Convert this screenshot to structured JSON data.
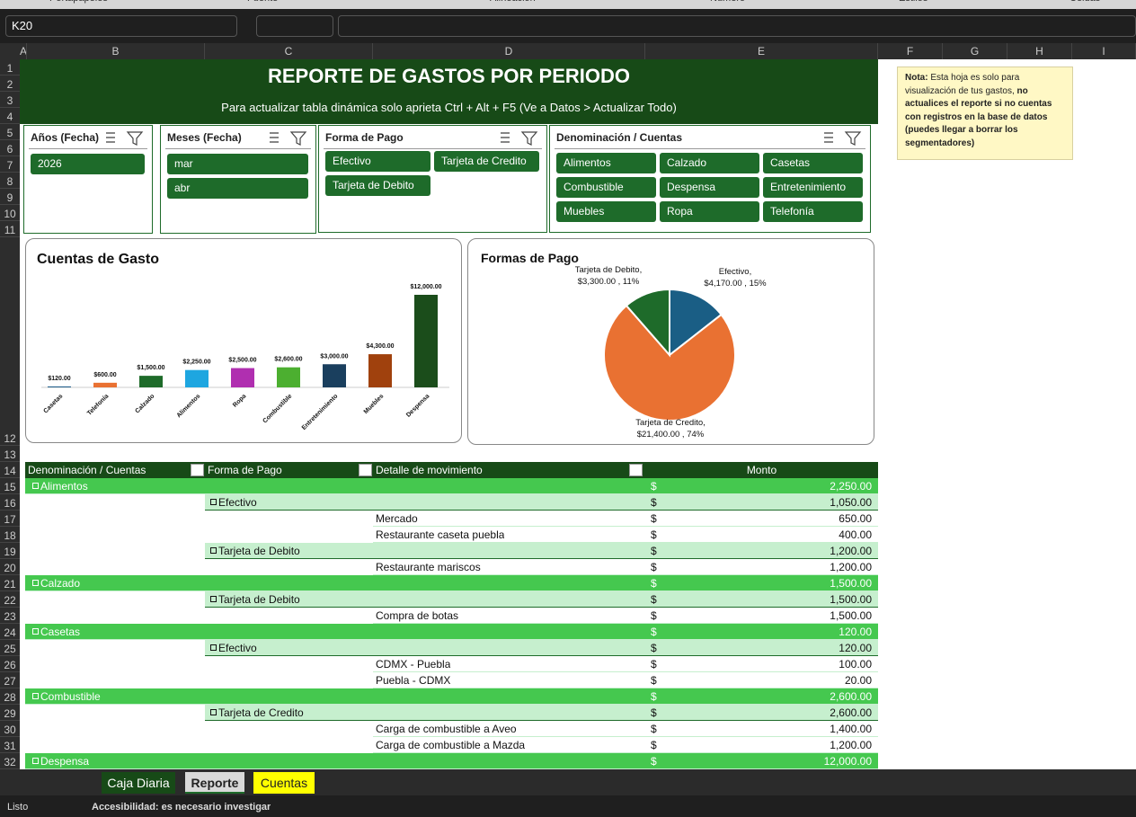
{
  "ribbon_groups": [
    "Portapapeles",
    "Fuente",
    "Alineación",
    "Número",
    "Estilos",
    "Celdas"
  ],
  "name_box": "K20",
  "columns": [
    "A",
    "B",
    "C",
    "D",
    "E",
    "F",
    "G",
    "H",
    "I"
  ],
  "rows": [
    1,
    2,
    3,
    4,
    5,
    6,
    7,
    8,
    9,
    10,
    11,
    12,
    13,
    14,
    15,
    16,
    17,
    18,
    19,
    20,
    21,
    22,
    23,
    24,
    25,
    26,
    27,
    28,
    29,
    30,
    31,
    32
  ],
  "report": {
    "title": "REPORTE DE GASTOS POR PERIODO",
    "subtitle": "Para actualizar tabla dinámica solo aprieta Ctrl + Alt + F5 (Ve a Datos > Actualizar Todo)"
  },
  "slicers": [
    {
      "title": "Años (Fecha)",
      "items": [
        "2026"
      ]
    },
    {
      "title": "Meses (Fecha)",
      "items": [
        "mar",
        "abr"
      ]
    },
    {
      "title": "Forma de Pago",
      "items": [
        "Efectivo",
        "Tarjeta de Credito",
        "Tarjeta de Debito"
      ]
    },
    {
      "title": "Denominación / Cuentas",
      "items": [
        "Alimentos",
        "Calzado",
        "Casetas",
        "Combustible",
        "Despensa",
        "Entretenimiento",
        "Muebles",
        "Ropa",
        "Telefonía"
      ]
    }
  ],
  "note": {
    "label": "Nota:",
    "text": "Esta hoja es solo para visualización de tus gastos,",
    "bold_text": "no actualices el reporte si no cuentas con registros en la base de datos (puedes llegar a borrar los segmentadores)"
  },
  "chart_data": [
    {
      "type": "bar",
      "title": "Cuentas de Gasto",
      "categories": [
        "Casetas",
        "Telefonía",
        "Calzado",
        "Alimentos",
        "Ropa",
        "Combustible",
        "Entretenimiento",
        "Muebles",
        "Despensa"
      ],
      "values": [
        120,
        600,
        1500,
        2250,
        2500,
        2600,
        3000,
        4300,
        12000
      ],
      "value_labels": [
        "$120.00",
        "$600.00",
        "$1,500.00",
        "$2,250.00",
        "$2,500.00",
        "$2,600.00",
        "$3,000.00",
        "$4,300.00",
        "$12,000.00"
      ],
      "colors": [
        "#1f5f8b",
        "#e97132",
        "#1e6b2a",
        "#1ea6e0",
        "#b02fb0",
        "#4caf30",
        "#1a3f5e",
        "#a0410d",
        "#1b4d1b"
      ]
    },
    {
      "type": "pie",
      "title": "Formas de Pago",
      "categories": [
        "Efectivo,",
        "Tarjeta de Credito,",
        "Tarjeta de Debito,"
      ],
      "values": [
        4170,
        21400,
        3300
      ],
      "value_labels": [
        "$4,170.00 , 15%",
        "$21,400.00 , 74%",
        "$3,300.00 , 11%"
      ],
      "colors": [
        "#1a5e85",
        "#e97132",
        "#1e6b2a"
      ]
    }
  ],
  "table": {
    "headers": [
      "Denominación / Cuentas",
      "Forma de Pago",
      "Detalle de movimiento",
      "Monto"
    ],
    "currency_symbol": "$",
    "groups": [
      {
        "label": "Alimentos",
        "amount": "2,250.00",
        "payments": [
          {
            "label": "Efectivo",
            "amount": "1,050.00",
            "items": [
              {
                "label": "Mercado",
                "amount": "650.00"
              },
              {
                "label": "Restaurante caseta puebla",
                "amount": "400.00"
              }
            ]
          },
          {
            "label": "Tarjeta de Debito",
            "amount": "1,200.00",
            "items": [
              {
                "label": "Restaurante mariscos",
                "amount": "1,200.00"
              }
            ]
          }
        ]
      },
      {
        "label": "Calzado",
        "amount": "1,500.00",
        "payments": [
          {
            "label": "Tarjeta de Debito",
            "amount": "1,500.00",
            "items": [
              {
                "label": "Compra de botas",
                "amount": "1,500.00"
              }
            ]
          }
        ]
      },
      {
        "label": "Casetas",
        "amount": "120.00",
        "payments": [
          {
            "label": "Efectivo",
            "amount": "120.00",
            "items": [
              {
                "label": "CDMX - Puebla",
                "amount": "100.00"
              },
              {
                "label": "Puebla - CDMX",
                "amount": "20.00"
              }
            ]
          }
        ]
      },
      {
        "label": "Combustible",
        "amount": "2,600.00",
        "payments": [
          {
            "label": "Tarjeta de Credito",
            "amount": "2,600.00",
            "items": [
              {
                "label": "Carga de combustible a Aveo",
                "amount": "1,400.00"
              },
              {
                "label": "Carga de combustible a Mazda",
                "amount": "1,200.00"
              }
            ]
          }
        ]
      },
      {
        "label": "Despensa",
        "amount": "12,000.00",
        "payments": []
      }
    ]
  },
  "sheet_tabs": [
    "Caja Diaria",
    "Reporte",
    "Cuentas"
  ],
  "status_bar": {
    "ready": "Listo",
    "accessibility": "Accesibilidad: es necesario investigar"
  }
}
